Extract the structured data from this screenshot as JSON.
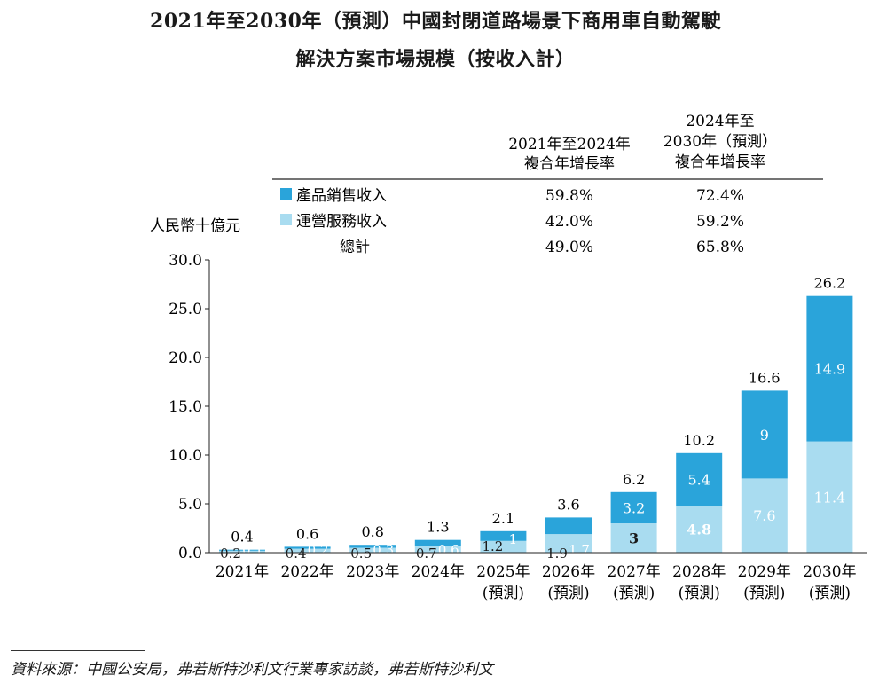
{
  "title_line1": "2021年至2030年（預測）中國封閉道路場景下商用車自動駕駛",
  "title_line2": "解決方案市場規模（按收入計）",
  "unit_label": "人民幣十億元",
  "cagr_table": {
    "headers": [
      "2021年至2024年\n複合年增長率",
      "2024年至\n2030年（預測）\n複合年增長率"
    ],
    "rows": [
      {
        "label": "產品銷售收入",
        "swatch": "#2aa4da",
        "values": [
          "59.8%",
          "72.4%"
        ]
      },
      {
        "label": "運營服務收入",
        "swatch": "#a9dcf0",
        "values": [
          "42.0%",
          "59.2%"
        ]
      },
      {
        "label": "總計",
        "swatch": "",
        "values": [
          "49.0%",
          "65.8%"
        ]
      }
    ]
  },
  "chart_data": {
    "type": "bar",
    "stacked": true,
    "categories": [
      "2021年",
      "2022年",
      "2023年",
      "2024年",
      "2025年\n(預測)",
      "2026年\n(預測)",
      "2027年\n(預測)",
      "2028年\n(預測)",
      "2029年\n(預測)",
      "2030年\n(預測)"
    ],
    "series": [
      {
        "name": "運營服務收入",
        "color": "#a9dcf0",
        "values": [
          0.2,
          0.4,
          0.5,
          0.7,
          1.2,
          1.9,
          3.0,
          4.8,
          7.6,
          11.4
        ]
      },
      {
        "name": "產品銷售收入",
        "color": "#2aa4da",
        "values": [
          0.1,
          0.2,
          0.3,
          0.6,
          1.0,
          1.7,
          3.2,
          5.4,
          9.0,
          14.9
        ]
      }
    ],
    "totals": [
      0.4,
      0.6,
      0.8,
      1.3,
      2.1,
      3.6,
      6.2,
      10.2,
      16.6,
      26.2
    ],
    "ylim": [
      0,
      30
    ],
    "yticks": [
      "0.0",
      "5.0",
      "10.0",
      "15.0",
      "20.0",
      "25.0",
      "30.0"
    ]
  },
  "source": "資料來源：中國公安局，弗若斯特沙利文行業專家訪談，弗若斯特沙利文"
}
